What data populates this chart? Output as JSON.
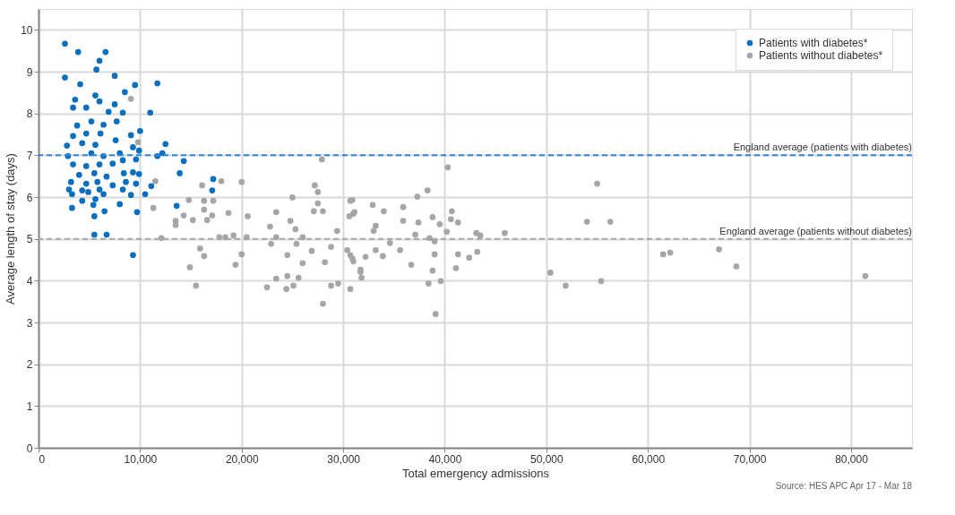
{
  "chart_data": {
    "type": "scatter",
    "xlabel": "Total emergency admissions",
    "ylabel": "Average length of stay (days)",
    "xlim": [
      0,
      86000
    ],
    "xticks": [
      0,
      {
        "value": 10000,
        "label": "10,000"
      },
      {
        "value": 20000,
        "label": "20,000"
      },
      {
        "value": 30000,
        "label": "30,000"
      },
      {
        "value": 40000,
        "label": "40,000"
      },
      {
        "value": 50000,
        "label": "50,000"
      },
      {
        "value": 60000,
        "label": "60,000"
      },
      {
        "value": 70000,
        "label": "70,000"
      },
      {
        "value": 80000,
        "label": "80,000"
      }
    ],
    "ylim": [
      0,
      10.5
    ],
    "yticks": [
      0,
      1,
      2,
      3,
      4,
      5,
      6,
      7,
      8,
      9,
      10
    ],
    "grid": true,
    "legend": "top right",
    "marker": "circle",
    "series": [
      {
        "name": "Patients with diabetes*",
        "color": "#0b6fc0",
        "x": [
          2600,
          3900,
          6600,
          6000,
          5700,
          2600,
          7500,
          4100,
          9500,
          11700,
          8500,
          5600,
          6000,
          3600,
          7500,
          3400,
          4700,
          8300,
          6900,
          11000,
          7700,
          3800,
          5200,
          6400,
          10000,
          3400,
          4700,
          6100,
          9100,
          7600,
          12500,
          2800,
          4300,
          5600,
          9300,
          2900,
          5200,
          6400,
          8000,
          9900,
          11700,
          12200,
          14300,
          3400,
          4700,
          6000,
          7300,
          8300,
          9600,
          13900,
          4000,
          5500,
          6700,
          8400,
          9300,
          9900,
          3200,
          4700,
          5800,
          7300,
          8600,
          9600,
          11100,
          3000,
          4300,
          6000,
          8300,
          3300,
          4900,
          6400,
          9100,
          10500,
          4300,
          5600,
          3300,
          5400,
          8000,
          6500,
          5500,
          9700,
          13600,
          5500,
          6700,
          9300,
          17200,
          17100
        ],
        "values": [
          9.67,
          9.47,
          9.47,
          9.26,
          9.05,
          8.86,
          8.9,
          8.7,
          8.68,
          8.72,
          8.51,
          8.43,
          8.29,
          8.33,
          8.22,
          8.14,
          8.14,
          8.02,
          8.04,
          8.02,
          7.81,
          7.71,
          7.81,
          7.73,
          7.58,
          7.46,
          7.52,
          7.52,
          7.48,
          7.36,
          7.27,
          7.23,
          7.29,
          7.25,
          7.19,
          6.98,
          7.05,
          6.98,
          7.05,
          7.11,
          6.98,
          7.05,
          6.86,
          6.78,
          6.74,
          6.78,
          6.8,
          6.88,
          6.9,
          6.57,
          6.53,
          6.57,
          6.49,
          6.57,
          6.59,
          6.55,
          6.36,
          6.32,
          6.36,
          6.28,
          6.36,
          6.32,
          6.26,
          6.18,
          6.16,
          6.18,
          6.18,
          6.07,
          6.12,
          6.07,
          6.05,
          6.07,
          5.91,
          5.95,
          5.74,
          5.81,
          5.83,
          5.66,
          5.54,
          5.64,
          5.79,
          5.1,
          5.1,
          4.61,
          6.43,
          6.16
        ]
      },
      {
        "name": "Patients without diabetes*",
        "color": "#a6a6a6",
        "x": [
          9100,
          9800,
          11500,
          27900,
          16100,
          18000,
          20000,
          27200,
          27500,
          25000,
          14800,
          16300,
          17200,
          27500,
          30700,
          11300,
          16300,
          18700,
          23400,
          27100,
          28000,
          17100,
          20600,
          31000,
          14300,
          15200,
          16600,
          13500,
          24800,
          30600,
          13500,
          22800,
          25300,
          29400,
          12100,
          17800,
          19200,
          20500,
          18400,
          23400,
          26000,
          22900,
          25400,
          26900,
          28800,
          30400,
          15900,
          16300,
          20000,
          24500,
          30700,
          31000,
          14900,
          19400,
          26000,
          28200,
          31700,
          23400,
          24500,
          25600,
          15500,
          22500,
          24400,
          25100,
          28800,
          29500,
          30700,
          28000,
          40300,
          55000,
          38300,
          37300,
          30900,
          32900,
          35900,
          34000,
          31100,
          40700,
          38800,
          35900,
          37400,
          33200,
          39500,
          41300,
          54000,
          56300,
          40600,
          33000,
          37100,
          40200,
          43100,
          43500,
          45900,
          38500,
          39000,
          34600,
          33200,
          35600,
          43200,
          41300,
          39000,
          32200,
          33900,
          42400,
          30900,
          61500,
          62200,
          67000,
          68700,
          36700,
          31700,
          38800,
          41100,
          50400,
          31800,
          39600,
          38400,
          51900,
          55400,
          81400,
          39100
        ],
        "values": [
          8.35,
          7.31,
          6.38,
          6.9,
          6.28,
          6.38,
          6.36,
          6.28,
          6.12,
          5.99,
          5.93,
          5.91,
          5.91,
          5.85,
          5.91,
          5.74,
          5.7,
          5.62,
          5.64,
          5.66,
          5.66,
          5.56,
          5.54,
          5.6,
          5.56,
          5.45,
          5.45,
          5.43,
          5.43,
          5.54,
          5.33,
          5.29,
          5.23,
          5.19,
          5.02,
          5.04,
          5.08,
          5.04,
          5.04,
          5.04,
          5.04,
          4.88,
          4.88,
          4.71,
          4.81,
          4.73,
          4.77,
          4.59,
          4.63,
          4.61,
          4.61,
          4.46,
          4.32,
          4.38,
          4.42,
          4.44,
          4.21,
          4.05,
          4.11,
          4.07,
          3.88,
          3.84,
          3.8,
          3.88,
          3.88,
          3.93,
          3.8,
          3.45,
          6.71,
          6.32,
          6.16,
          6.01,
          5.93,
          5.81,
          5.76,
          5.66,
          5.64,
          5.66,
          5.52,
          5.43,
          5.39,
          5.31,
          5.35,
          5.39,
          5.41,
          5.41,
          5.47,
          5.19,
          5.1,
          5.17,
          5.14,
          5.08,
          5.14,
          5.02,
          4.94,
          4.9,
          4.73,
          4.73,
          4.69,
          4.63,
          4.63,
          4.57,
          4.59,
          4.55,
          4.53,
          4.63,
          4.67,
          4.75,
          4.34,
          4.38,
          4.26,
          4.24,
          4.3,
          4.19,
          4.07,
          3.99,
          3.93,
          3.88,
          3.99,
          4.11,
          3.2
        ]
      }
    ],
    "ref_lines": [
      {
        "axis": "y",
        "value": 7,
        "label": "England average (patients with diabetes)",
        "color": "#2f86d6",
        "line_style": "dashed"
      },
      {
        "axis": "y",
        "value": 5,
        "label": "England average (patients without diabetes)",
        "color": "#a6a6a6",
        "line_style": "dashed"
      }
    ],
    "annotations": [
      "Source: HES APC Apr 17 - Mar 18"
    ]
  }
}
